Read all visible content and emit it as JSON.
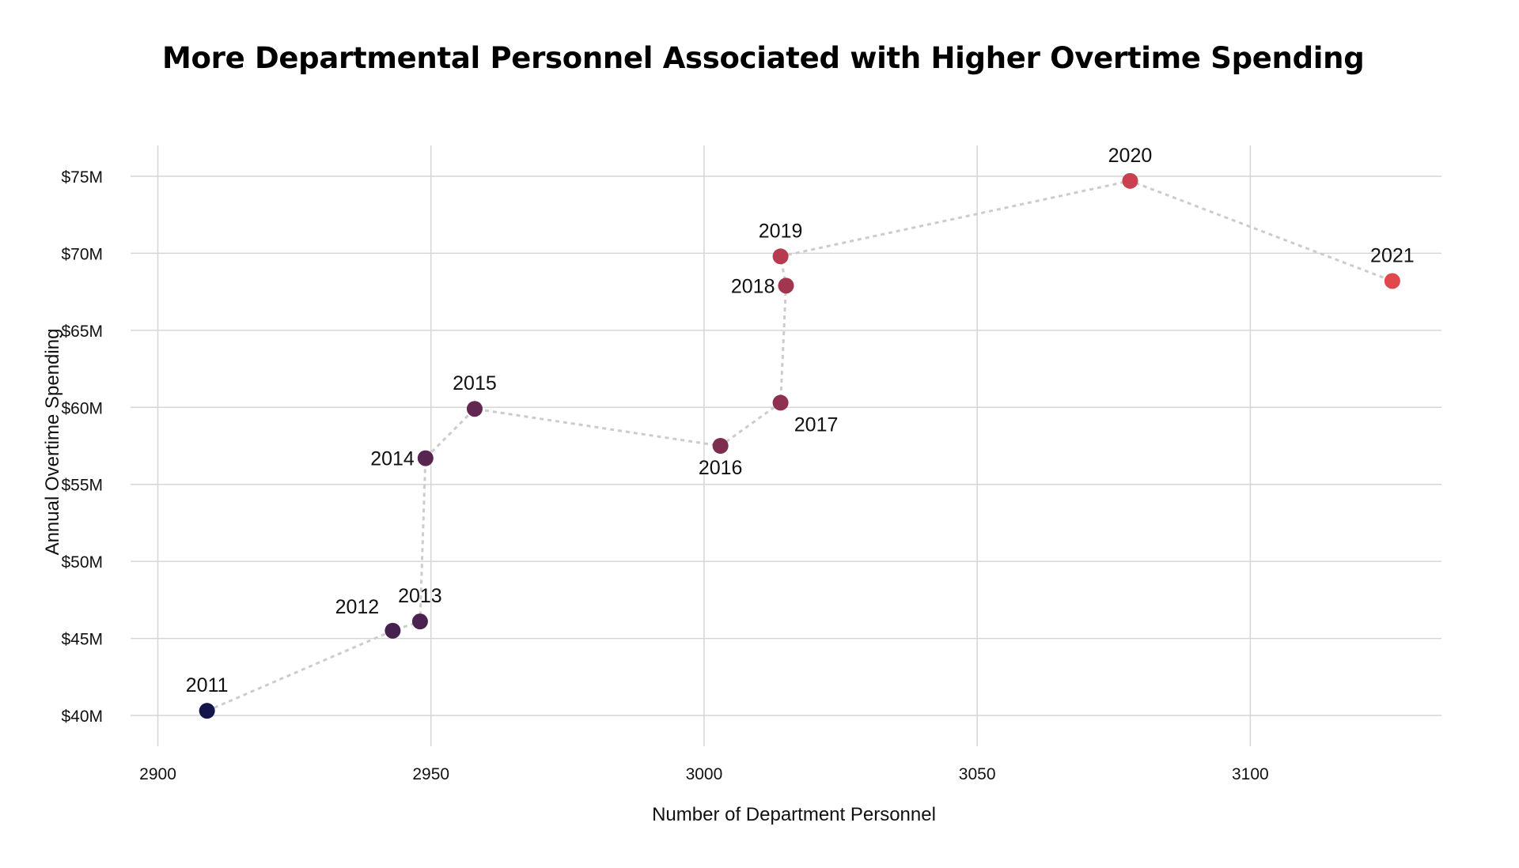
{
  "chart_data": {
    "type": "scatter",
    "title": "More Departmental Personnel Associated with Higher Overtime Spending",
    "xlabel": "Number of Department Personnel",
    "ylabel": "Annual Overtime Spending",
    "xlim": [
      2895,
      3135
    ],
    "ylim": [
      38,
      77
    ],
    "x_ticks": [
      2900,
      2950,
      3000,
      3050,
      3100
    ],
    "y_ticks": [
      40,
      45,
      50,
      55,
      60,
      65,
      70,
      75
    ],
    "y_tick_labels": [
      "$40M",
      "$45M",
      "$50M",
      "$55M",
      "$60M",
      "$65M",
      "$70M",
      "$75M"
    ],
    "grid": true,
    "connect_points": true,
    "connector_color": "#cccccc",
    "points": [
      {
        "year": "2011",
        "x": 2909,
        "y": 40.3,
        "color": "#14154a",
        "label_pos": "above"
      },
      {
        "year": "2012",
        "x": 2943,
        "y": 45.5,
        "color": "#46214f",
        "label_pos": "above-left"
      },
      {
        "year": "2013",
        "x": 2948,
        "y": 46.1,
        "color": "#4b2250",
        "label_pos": "above"
      },
      {
        "year": "2014",
        "x": 2949,
        "y": 56.7,
        "color": "#572550",
        "label_pos": "left"
      },
      {
        "year": "2015",
        "x": 2958,
        "y": 59.9,
        "color": "#632851",
        "label_pos": "above"
      },
      {
        "year": "2016",
        "x": 3003,
        "y": 57.5,
        "color": "#7c2d50",
        "label_pos": "below"
      },
      {
        "year": "2017",
        "x": 3014,
        "y": 60.3,
        "color": "#8f3150",
        "label_pos": "below-right"
      },
      {
        "year": "2018",
        "x": 3015,
        "y": 67.9,
        "color": "#a3364f",
        "label_pos": "left"
      },
      {
        "year": "2019",
        "x": 3014,
        "y": 69.8,
        "color": "#b63b4f",
        "label_pos": "above"
      },
      {
        "year": "2020",
        "x": 3078,
        "y": 74.7,
        "color": "#c9404e",
        "label_pos": "above"
      },
      {
        "year": "2021",
        "x": 3126,
        "y": 68.2,
        "color": "#e0484e",
        "label_pos": "above"
      }
    ]
  }
}
